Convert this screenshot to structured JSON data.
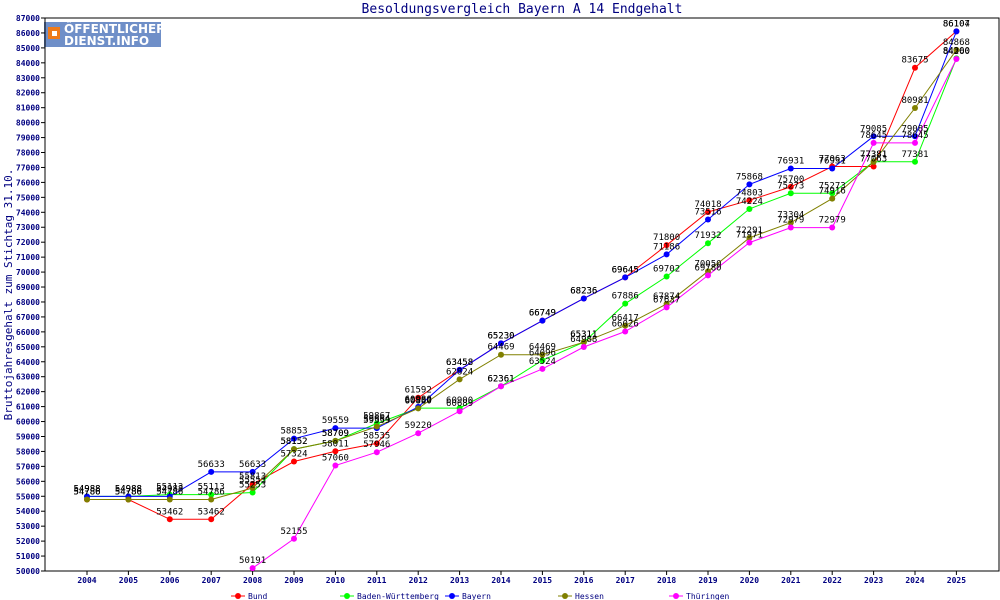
{
  "chart_data": {
    "type": "line",
    "title": "Besoldungsvergleich Bayern A 14 Endgehalt",
    "ylabel": "Bruttojahresgehalt zum Stichtag 31.10.",
    "xlabel": "",
    "categories": [
      "2004",
      "2005",
      "2006",
      "2007",
      "2008",
      "2009",
      "2010",
      "2011",
      "2012",
      "2013",
      "2014",
      "2015",
      "2016",
      "2017",
      "2018",
      "2019",
      "2020",
      "2021",
      "2022",
      "2023",
      "2024",
      "2025"
    ],
    "ylim": [
      50000,
      87000
    ],
    "ytick_step": 1000,
    "grid": false,
    "legend_position": "bottom",
    "series": [
      {
        "name": "Bund",
        "color": "#ff0000",
        "values": [
          54786,
          54786,
          53462,
          53462,
          55813,
          57324,
          58011,
          58535,
          61592,
          63458,
          65230,
          66749,
          68236,
          69645,
          71800,
          74018,
          74803,
          75700,
          77063,
          77063,
          83675,
          86107
        ],
        "labels": [
          "54786",
          "54786",
          "53462",
          "53462",
          "55813",
          "57324",
          "58011",
          "58535",
          "61592",
          "63458",
          "65230",
          "66749",
          "68236",
          "69645",
          "71800",
          "74018",
          "74803",
          "75700",
          "77063",
          "77063",
          "83675",
          "86107"
        ]
      },
      {
        "name": "Baden-Württemberg",
        "color": "#00ff00",
        "values": [
          54988,
          54988,
          55113,
          55113,
          55253,
          58152,
          58709,
          59867,
          60900,
          60900,
          62361,
          64096,
          65311,
          67886,
          69702,
          71932,
          74224,
          75273,
          75273,
          77381,
          77381,
          84300
        ],
        "labels": [
          "54988",
          "54988",
          "55113",
          "55113",
          "55253",
          "58152",
          "58709",
          "59867",
          "60900",
          "60900",
          "62361",
          "64096",
          "65311",
          "67886",
          "69702",
          "71932",
          "74224",
          "75273",
          "75273",
          "77381",
          "77381",
          "84300"
        ]
      },
      {
        "name": "Bayern",
        "color": "#0000ff",
        "values": [
          54988,
          54988,
          54988,
          56633,
          56633,
          58853,
          59559,
          59559,
          60980,
          63458,
          65230,
          66749,
          68236,
          69645,
          71186,
          73516,
          75868,
          76931,
          76931,
          79085,
          79085,
          86104
        ],
        "labels": [
          "54988",
          "54988",
          "54988",
          "56633",
          "56633",
          "58853",
          "59559",
          "59559",
          "60980",
          "63458",
          "65230",
          "66749",
          "68236",
          "69645",
          "71186",
          "73516",
          "75868",
          "76931",
          "76931",
          "79085",
          "79085",
          "86104"
        ]
      },
      {
        "name": "Hessen",
        "color": "#808000",
        "values": [
          54786,
          54786,
          54786,
          54786,
          55553,
          58152,
          58709,
          59664,
          60880,
          62824,
          64469,
          64469,
          65311,
          66417,
          67874,
          70050,
          72291,
          73304,
          74916,
          77381,
          80981,
          84868
        ],
        "labels": [
          "54786",
          "54786",
          "54786",
          "54786",
          "55553",
          "58152",
          "58709",
          "59664",
          "60880",
          "62824",
          "64469",
          "64469",
          "65311",
          "66417",
          "67874",
          "70050",
          "72291",
          "73304",
          "74916",
          "77381",
          "80981",
          "84868"
        ]
      },
      {
        "name": "Thüringen",
        "color": "#ff00ff",
        "values": [
          null,
          null,
          null,
          null,
          50191,
          52155,
          57060,
          57946,
          59220,
          60689,
          62361,
          63524,
          64988,
          66026,
          67637,
          69780,
          71971,
          72979,
          72979,
          78645,
          78645,
          84260
        ],
        "labels": [
          "",
          "",
          "",
          "",
          "50191",
          "52155",
          "57060",
          "57946",
          "59220",
          "60689",
          "62361",
          "63524",
          "64988",
          "66026",
          "67637",
          "69780",
          "71971",
          "72979",
          "72979",
          "78645",
          "78645",
          "84260"
        ]
      }
    ]
  },
  "logo": {
    "line1": "ÖFFENTLICHER",
    "line2": "DIENST.INFO",
    "bg_color": "#6f8fc8",
    "square_color": "#ee7a1a"
  }
}
